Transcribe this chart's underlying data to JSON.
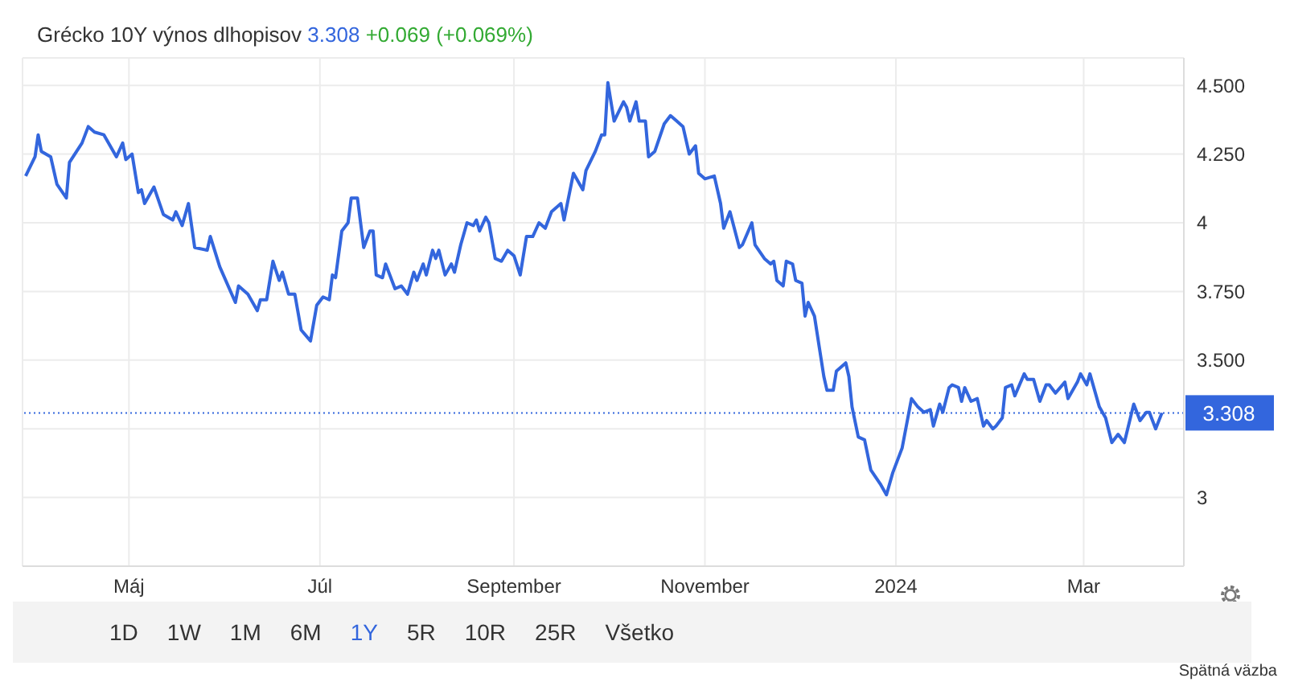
{
  "chart_data": {
    "type": "line",
    "title": "Grécko 10Y výnos dlhopisov",
    "annotations": [
      "3.308",
      "+0.069 (+0.069%)",
      "1D",
      "1W",
      "1M",
      "6M",
      "1Y",
      "5R",
      "10R",
      "25R",
      "Všetko",
      "Spätná väzba"
    ],
    "x": [
      "2023-03-29",
      "2023-04-01",
      "2023-04-02",
      "2023-04-03",
      "2023-04-06",
      "2023-04-08",
      "2023-04-11",
      "2023-04-12",
      "2023-04-16",
      "2023-04-18",
      "2023-04-20",
      "2023-04-23",
      "2023-04-27",
      "2023-04-29",
      "2023-04-30",
      "2023-05-02",
      "2023-05-04",
      "2023-05-05",
      "2023-05-06",
      "2023-05-09",
      "2023-05-12",
      "2023-05-15",
      "2023-05-16",
      "2023-05-18",
      "2023-05-20",
      "2023-05-22",
      "2023-05-26",
      "2023-05-27",
      "2023-05-30",
      "2023-06-04",
      "2023-06-05",
      "2023-06-08",
      "2023-06-11",
      "2023-06-12",
      "2023-06-14",
      "2023-06-16",
      "2023-06-18",
      "2023-06-19",
      "2023-06-21",
      "2023-06-23",
      "2023-06-25",
      "2023-06-28",
      "2023-06-30",
      "2023-07-02",
      "2023-07-04",
      "2023-07-05",
      "2023-07-06",
      "2023-07-08",
      "2023-07-10",
      "2023-07-11",
      "2023-07-13",
      "2023-07-15",
      "2023-07-17",
      "2023-07-18",
      "2023-07-19",
      "2023-07-21",
      "2023-07-22",
      "2023-07-25",
      "2023-07-27",
      "2023-07-29",
      "2023-07-31",
      "2023-08-01",
      "2023-08-03",
      "2023-08-04",
      "2023-08-06",
      "2023-08-07",
      "2023-08-08",
      "2023-08-10",
      "2023-08-12",
      "2023-08-13",
      "2023-08-15",
      "2023-08-17",
      "2023-08-19",
      "2023-08-20",
      "2023-08-21",
      "2023-08-23",
      "2023-08-24",
      "2023-08-26",
      "2023-08-28",
      "2023-08-30",
      "2023-09-01",
      "2023-09-03",
      "2023-09-05",
      "2023-09-07",
      "2023-09-09",
      "2023-09-11",
      "2023-09-13",
      "2023-09-16",
      "2023-09-17",
      "2023-09-20",
      "2023-09-21",
      "2023-09-23",
      "2023-09-24",
      "2023-09-27",
      "2023-09-29",
      "2023-09-30",
      "2023-10-01",
      "2023-10-03",
      "2023-10-06",
      "2023-10-07",
      "2023-10-08",
      "2023-10-10",
      "2023-10-11",
      "2023-10-13",
      "2023-10-14",
      "2023-10-16",
      "2023-10-19",
      "2023-10-21",
      "2023-10-23",
      "2023-10-25",
      "2023-10-27",
      "2023-10-29",
      "2023-10-30",
      "2023-11-01",
      "2023-11-04",
      "2023-11-06",
      "2023-11-07",
      "2023-11-09",
      "2023-11-12",
      "2023-11-13",
      "2023-11-16",
      "2023-11-17",
      "2023-11-20",
      "2023-11-22",
      "2023-11-23",
      "2023-11-24",
      "2023-11-26",
      "2023-11-27",
      "2023-11-29",
      "2023-11-30",
      "2023-12-02",
      "2023-12-03",
      "2023-12-04",
      "2023-12-06",
      "2023-12-09",
      "2023-12-10",
      "2023-12-12",
      "2023-12-13",
      "2023-12-16",
      "2023-12-17",
      "2023-12-18",
      "2023-12-20",
      "2023-12-22",
      "2023-12-24",
      "2023-12-27",
      "2023-12-29",
      "2023-12-31",
      "2024-01-03",
      "2024-01-06",
      "2024-01-08",
      "2024-01-10",
      "2024-01-12",
      "2024-01-13",
      "2024-01-15",
      "2024-01-16",
      "2024-01-18",
      "2024-01-19",
      "2024-01-21",
      "2024-01-22",
      "2024-01-23",
      "2024-01-25",
      "2024-01-27",
      "2024-01-29",
      "2024-01-30",
      "2024-02-01",
      "2024-02-02",
      "2024-02-04",
      "2024-02-05",
      "2024-02-07",
      "2024-02-08",
      "2024-02-11",
      "2024-02-12",
      "2024-02-14",
      "2024-02-16",
      "2024-02-18",
      "2024-02-19",
      "2024-02-21",
      "2024-02-24",
      "2024-02-25",
      "2024-02-28",
      "2024-02-29",
      "2024-03-02",
      "2024-03-03",
      "2024-03-06",
      "2024-03-08",
      "2024-03-10",
      "2024-03-12",
      "2024-03-14",
      "2024-03-17",
      "2024-03-19",
      "2024-03-21",
      "2024-03-22",
      "2024-03-24",
      "2024-03-26"
    ],
    "series": [
      {
        "color": "#3366dd",
        "values": [
          4.17,
          4.24,
          4.32,
          4.26,
          4.24,
          4.14,
          4.09,
          4.22,
          4.29,
          4.35,
          4.33,
          4.32,
          4.24,
          4.29,
          4.23,
          4.25,
          4.11,
          4.12,
          4.07,
          4.13,
          4.03,
          4.01,
          4.04,
          3.99,
          4.07,
          3.91,
          3.9,
          3.95,
          3.84,
          3.71,
          3.77,
          3.74,
          3.68,
          3.72,
          3.72,
          3.86,
          3.79,
          3.82,
          3.74,
          3.74,
          3.61,
          3.57,
          3.7,
          3.73,
          3.72,
          3.81,
          3.8,
          3.97,
          4.0,
          4.09,
          4.09,
          3.91,
          3.97,
          3.97,
          3.81,
          3.8,
          3.85,
          3.76,
          3.77,
          3.74,
          3.82,
          3.79,
          3.85,
          3.81,
          3.9,
          3.87,
          3.9,
          3.81,
          3.85,
          3.82,
          3.92,
          4.0,
          3.99,
          4.01,
          3.97,
          4.02,
          4.0,
          3.87,
          3.86,
          3.9,
          3.88,
          3.81,
          3.95,
          3.95,
          4.0,
          3.98,
          4.04,
          4.07,
          4.01,
          4.18,
          4.16,
          4.12,
          4.19,
          4.26,
          4.32,
          4.32,
          4.51,
          4.37,
          4.44,
          4.42,
          4.37,
          4.44,
          4.37,
          4.37,
          4.24,
          4.26,
          4.36,
          4.39,
          4.37,
          4.35,
          4.25,
          4.28,
          4.18,
          4.16,
          4.17,
          4.07,
          3.98,
          4.04,
          3.91,
          3.92,
          4.0,
          3.92,
          3.87,
          3.85,
          3.86,
          3.79,
          3.77,
          3.86,
          3.85,
          3.79,
          3.78,
          3.66,
          3.71,
          3.66,
          3.44,
          3.39,
          3.39,
          3.46,
          3.49,
          3.44,
          3.33,
          3.22,
          3.21,
          3.1,
          3.05,
          3.01,
          3.09,
          3.18,
          3.36,
          3.33,
          3.31,
          3.32,
          3.26,
          3.34,
          3.31,
          3.4,
          3.41,
          3.4,
          3.35,
          3.4,
          3.35,
          3.36,
          3.26,
          3.28,
          3.25,
          3.26,
          3.29,
          3.4,
          3.41,
          3.37,
          3.45,
          3.43,
          3.43,
          3.35,
          3.41,
          3.41,
          3.38,
          3.42,
          3.36,
          3.42,
          3.45,
          3.41,
          3.45,
          3.33,
          3.29,
          3.2,
          3.23,
          3.2,
          3.34,
          3.28,
          3.31,
          3.31,
          3.25,
          3.308
        ]
      }
    ],
    "xlim": [
      "2023-03-28",
      "2024-04-02"
    ],
    "xticks": [
      {
        "value": "2023-05-01",
        "label": "Máj"
      },
      {
        "value": "2023-07-01",
        "label": "Júl"
      },
      {
        "value": "2023-09-01",
        "label": "September"
      },
      {
        "value": "2023-11-01",
        "label": "November"
      },
      {
        "value": "2024-01-01",
        "label": "2024"
      },
      {
        "value": "2024-03-01",
        "label": "Mar"
      }
    ],
    "ylim": [
      2.75,
      4.6
    ],
    "yticks": [
      {
        "value": 3,
        "label": "3"
      },
      {
        "value": 3.25,
        "label": null
      },
      {
        "value": 3.5,
        "label": "3.500"
      },
      {
        "value": 3.75,
        "label": "3.750"
      },
      {
        "value": 4,
        "label": "4"
      },
      {
        "value": 4.25,
        "label": "4.250"
      },
      {
        "value": 4.5,
        "label": "4.500"
      }
    ],
    "ref_lines": [
      {
        "axis": "y",
        "value": 3.308,
        "label": "3.308",
        "color": "#3366dd",
        "line_style": "dotted"
      }
    ],
    "grid": true,
    "marker": "none",
    "line_style": "solid"
  }
}
